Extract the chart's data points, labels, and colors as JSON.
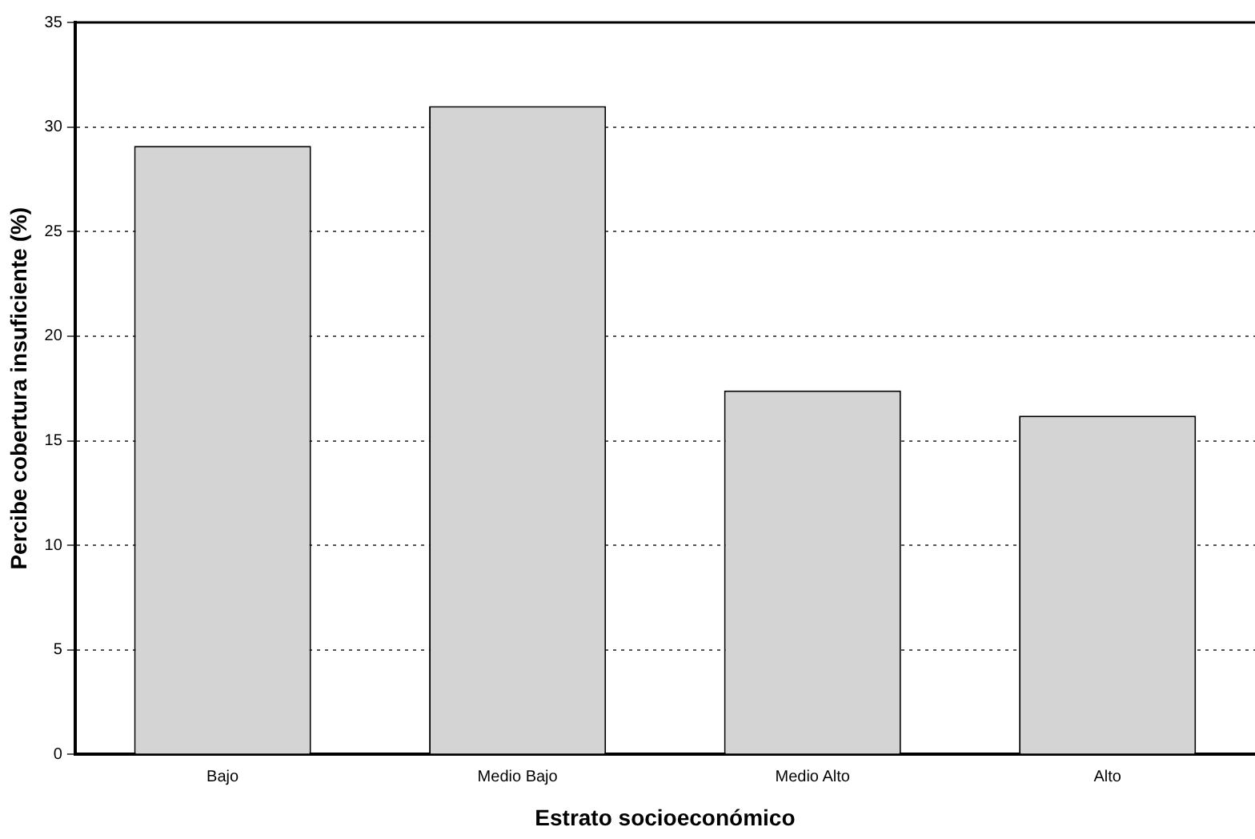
{
  "chart_data": {
    "type": "bar",
    "xlabel": "Estrato socioeconómico",
    "ylabel": "Percibe cobertura insuficiente (%)",
    "categories": [
      "Bajo",
      "Medio Bajo",
      "Medio Alto",
      "Alto"
    ],
    "values": [
      29.1,
      31.0,
      17.4,
      16.2
    ],
    "color": "#d4d4d4",
    "ylim": [
      0,
      35
    ],
    "yticks": [
      0,
      5,
      10,
      15,
      20,
      25,
      30,
      35
    ],
    "grid": "y",
    "legend": false
  }
}
